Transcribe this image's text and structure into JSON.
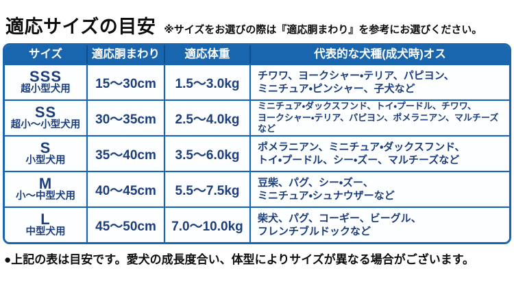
{
  "page": {
    "title": "適応サイズの目安",
    "note": "※サイズをお選びの際は『適応胴まわり』を参考にお選びください。",
    "footnote": "●上記の表は目安です。愛犬の成長度合い、体型によりサイズが異なる場合がございます。"
  },
  "colors": {
    "header_blue": "#1a66ae",
    "border_blue": "#1a66ae",
    "text_navy": "#1c3d7c"
  },
  "table": {
    "headers": [
      "サイズ",
      "適応胴まわり",
      "適応体重",
      "代表的な犬種(成犬時)オス"
    ],
    "rows": [
      {
        "size_code": "SSS",
        "size_label": "超小型犬用",
        "girth": "15〜30cm",
        "weight": "1.5〜3.0kg",
        "breeds": "チワワ、ヨークシャー・テリア、パピヨン、\nミニチュア・ピンシャー、子犬など"
      },
      {
        "size_code": "SS",
        "size_label": "超小〜小型犬用",
        "girth": "30〜35cm",
        "weight": "2.5〜4.0kg",
        "breeds": "ミニチュア・ダックスフンド、トイ・プードル、チワワ、\nヨークシャー・テリア、パピヨン、ポメラニアン、マルチーズなど"
      },
      {
        "size_code": "S",
        "size_label": "小型犬用",
        "girth": "35〜40cm",
        "weight": "3.5〜6.0kg",
        "breeds": "ポメラニアン、ミニチュア・ダックスフンド、\nトイ・プードル、シー・ズー、マルチーズなど"
      },
      {
        "size_code": "M",
        "size_label": "小〜中型犬用",
        "girth": "40〜45cm",
        "weight": "5.5〜7.5kg",
        "breeds": "豆柴、パグ、シー・ズー、\nミニチュア・シュナウザーなど"
      },
      {
        "size_code": "L",
        "size_label": "中型犬用",
        "girth": "45〜50cm",
        "weight": "7.0〜10.0kg",
        "breeds": "柴犬、パグ、コーギー、ビーグル、\nフレンチブルドックなど"
      }
    ]
  }
}
